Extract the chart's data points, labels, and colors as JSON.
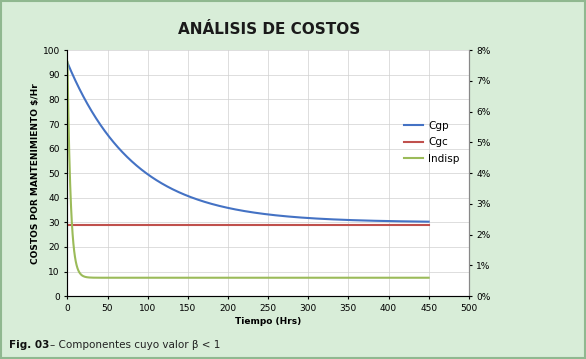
{
  "title": "ANÁLISIS DE COSTOS",
  "xlabel": "Tiempo (Hrs)",
  "ylabel": "COSTOS POR MANTENIMIENTO $/Hr",
  "ylim_left": [
    0,
    100
  ],
  "ylim_right": [
    0,
    0.08
  ],
  "xlim": [
    0,
    500
  ],
  "xticks": [
    0,
    50,
    100,
    150,
    200,
    250,
    300,
    350,
    400,
    450,
    500
  ],
  "yticks_left": [
    0,
    10,
    20,
    30,
    40,
    50,
    60,
    70,
    80,
    90,
    100
  ],
  "yticks_right": [
    0.0,
    0.01,
    0.02,
    0.03,
    0.04,
    0.05,
    0.06,
    0.07,
    0.08
  ],
  "legend_labels": [
    "Cgp",
    "Cgc",
    "Indisp"
  ],
  "line_colors": [
    "#4472C4",
    "#C0504D",
    "#9BBB59"
  ],
  "grid_color": "#D0D0D0",
  "cgp_a": 65,
  "cgp_b": 0.012,
  "cgp_c": 30,
  "cgc_value": 29,
  "indisp_a": 0.072,
  "indisp_b": 0.25,
  "indisp_c": 0.006,
  "title_fontsize": 11,
  "axis_label_fontsize": 6.5,
  "tick_fontsize": 6.5,
  "legend_fontsize": 7.5,
  "figure_bg": "#D8EDD8",
  "plot_bg": "#FFFFFF",
  "border_color": "#A0C0A0"
}
